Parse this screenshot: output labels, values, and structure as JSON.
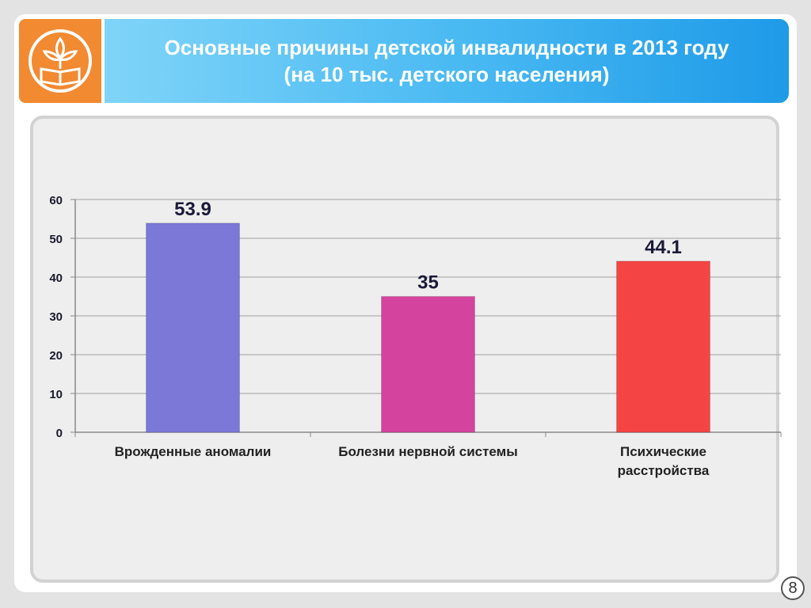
{
  "header": {
    "title_line1": "Основные причины детской инвалидности в 2013 году",
    "title_line2": "(на 10 тыс. детского населения)"
  },
  "logo": {
    "icon": "book-flower-logo-icon"
  },
  "page_number": "8",
  "colors": {
    "logo_bg": "#f28a32",
    "title_bg": "#47b8f2",
    "bar_1": "#7b78d8",
    "bar_2": "#d4449e",
    "bar_3": "#f44444"
  },
  "chart_data": {
    "type": "bar",
    "title": "Основные причины детской инвалидности в 2013 году (на 10 тыс. детского населения)",
    "categories": [
      [
        "Врожденные аномалии"
      ],
      [
        "Болезни нервной системы"
      ],
      [
        "Психические",
        "расстройства"
      ]
    ],
    "values": [
      53.9,
      35,
      44.1
    ],
    "value_labels": [
      "53.9",
      "35",
      "44.1"
    ],
    "ylim": [
      0,
      60
    ],
    "yticks": [
      0,
      10,
      20,
      30,
      40,
      50,
      60
    ],
    "grid": true,
    "xlabel": "",
    "ylabel": ""
  }
}
